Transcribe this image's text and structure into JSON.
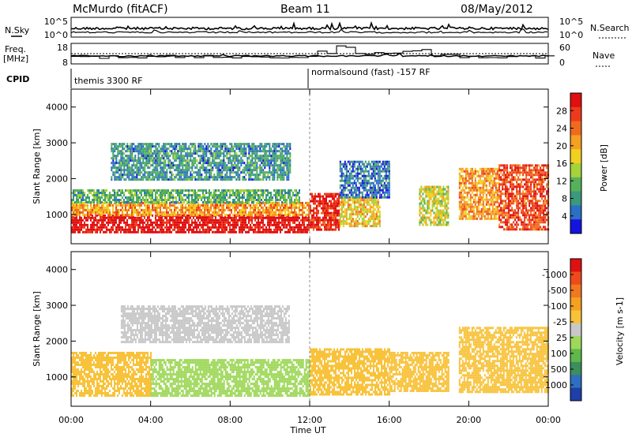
{
  "header": {
    "station": "McMurdo (fitACF)",
    "beam": "Beam 11",
    "date": "08/May/2012"
  },
  "strip": {
    "nsky_label": "N.Sky",
    "nsky_ticks": [
      "10^5",
      "10^0"
    ],
    "nsearch_label": "N.Search",
    "nsearch_ticks": [
      "10^5",
      "10^0"
    ],
    "freq_label": "Freq.",
    "freq_unit": "[MHz]",
    "freq_ticks": [
      "18",
      "8"
    ],
    "nave_label": "Nave",
    "nave_ticks": [
      "60",
      "0"
    ],
    "cpid_label": "CPID",
    "cpid_left": "themis 3300 RF",
    "cpid_right": "normalsound (fast) -157 RF"
  },
  "chart_data": [
    {
      "type": "heatmap",
      "name": "power-panel",
      "ylabel": "Slant Range [km]",
      "xlabel": "",
      "yticks": [
        "1000",
        "2000",
        "3000",
        "4000"
      ],
      "ylim": [
        180,
        4500
      ],
      "xlim_hours": [
        0,
        24
      ],
      "colorbar_label": "Power [dB]",
      "colorbar_ticks": [
        "4",
        "8",
        "12",
        "16",
        "20",
        "24",
        "28"
      ],
      "colorbar_colors": [
        "#1414e0",
        "#2c6fc8",
        "#3a9a7a",
        "#56b25a",
        "#a6d23a",
        "#f0d020",
        "#f5a020",
        "#f06a1e",
        "#ee3a1c",
        "#e00f10"
      ],
      "regions": [
        {
          "t0": 0.0,
          "t1": 12.0,
          "r0": 500,
          "r1": 1000,
          "level": 28
        },
        {
          "t0": 0.0,
          "t1": 12.0,
          "r0": 1000,
          "r1": 1350,
          "level": 20
        },
        {
          "t0": 0.0,
          "t1": 11.5,
          "r0": 1350,
          "r1": 1700,
          "level": 12
        },
        {
          "t0": 2.0,
          "t1": 11.0,
          "r0": 2000,
          "r1": 3000,
          "level": 10
        },
        {
          "t0": 12.0,
          "t1": 13.5,
          "r0": 600,
          "r1": 1600,
          "level": 26
        },
        {
          "t0": 13.5,
          "t1": 15.5,
          "r0": 700,
          "r1": 1500,
          "level": 18
        },
        {
          "t0": 13.5,
          "t1": 16.0,
          "r0": 1500,
          "r1": 2500,
          "level": 8
        },
        {
          "t0": 17.5,
          "t1": 19.0,
          "r0": 700,
          "r1": 1800,
          "level": 16
        },
        {
          "t0": 19.5,
          "t1": 21.5,
          "r0": 900,
          "r1": 2300,
          "level": 20
        },
        {
          "t0": 21.5,
          "t1": 24.0,
          "r0": 600,
          "r1": 2400,
          "level": 24
        }
      ]
    },
    {
      "type": "heatmap",
      "name": "velocity-panel",
      "ylabel": "Slant Range [km]",
      "xlabel": "Time UT",
      "xticks": [
        "00:00",
        "04:00",
        "08:00",
        "12:00",
        "16:00",
        "20:00",
        "00:00"
      ],
      "yticks": [
        "1000",
        "2000",
        "3000",
        "4000"
      ],
      "ylim": [
        180,
        4500
      ],
      "xlim_hours": [
        0,
        24
      ],
      "colorbar_label": "Velocity [m s-1]",
      "colorbar_ticks": [
        "1000",
        "500",
        "100",
        "25",
        "-25",
        "-100",
        "-500",
        "-1000"
      ],
      "colorbar_colors": [
        "#1f3fa8",
        "#2f6fc0",
        "#3b8f5c",
        "#5fb84a",
        "#9ed85a",
        "#c8c8c8",
        "#f8c23a",
        "#f5a020",
        "#f07820",
        "#ee4a1c",
        "#e01010"
      ],
      "regions": [
        {
          "t0": 0.0,
          "t1": 4.0,
          "r0": 500,
          "r1": 1700,
          "level": -100
        },
        {
          "t0": 4.0,
          "t1": 12.0,
          "r0": 500,
          "r1": 1500,
          "level": 100
        },
        {
          "t0": 2.5,
          "t1": 11.0,
          "r0": 2000,
          "r1": 3000,
          "level": 25
        },
        {
          "t0": 12.0,
          "t1": 16.0,
          "r0": 500,
          "r1": 1800,
          "level": -100
        },
        {
          "t0": 16.0,
          "t1": 19.0,
          "r0": 600,
          "r1": 1700,
          "level": -100
        },
        {
          "t0": 19.5,
          "t1": 24.0,
          "r0": 600,
          "r1": 2400,
          "level": -100
        }
      ]
    }
  ]
}
